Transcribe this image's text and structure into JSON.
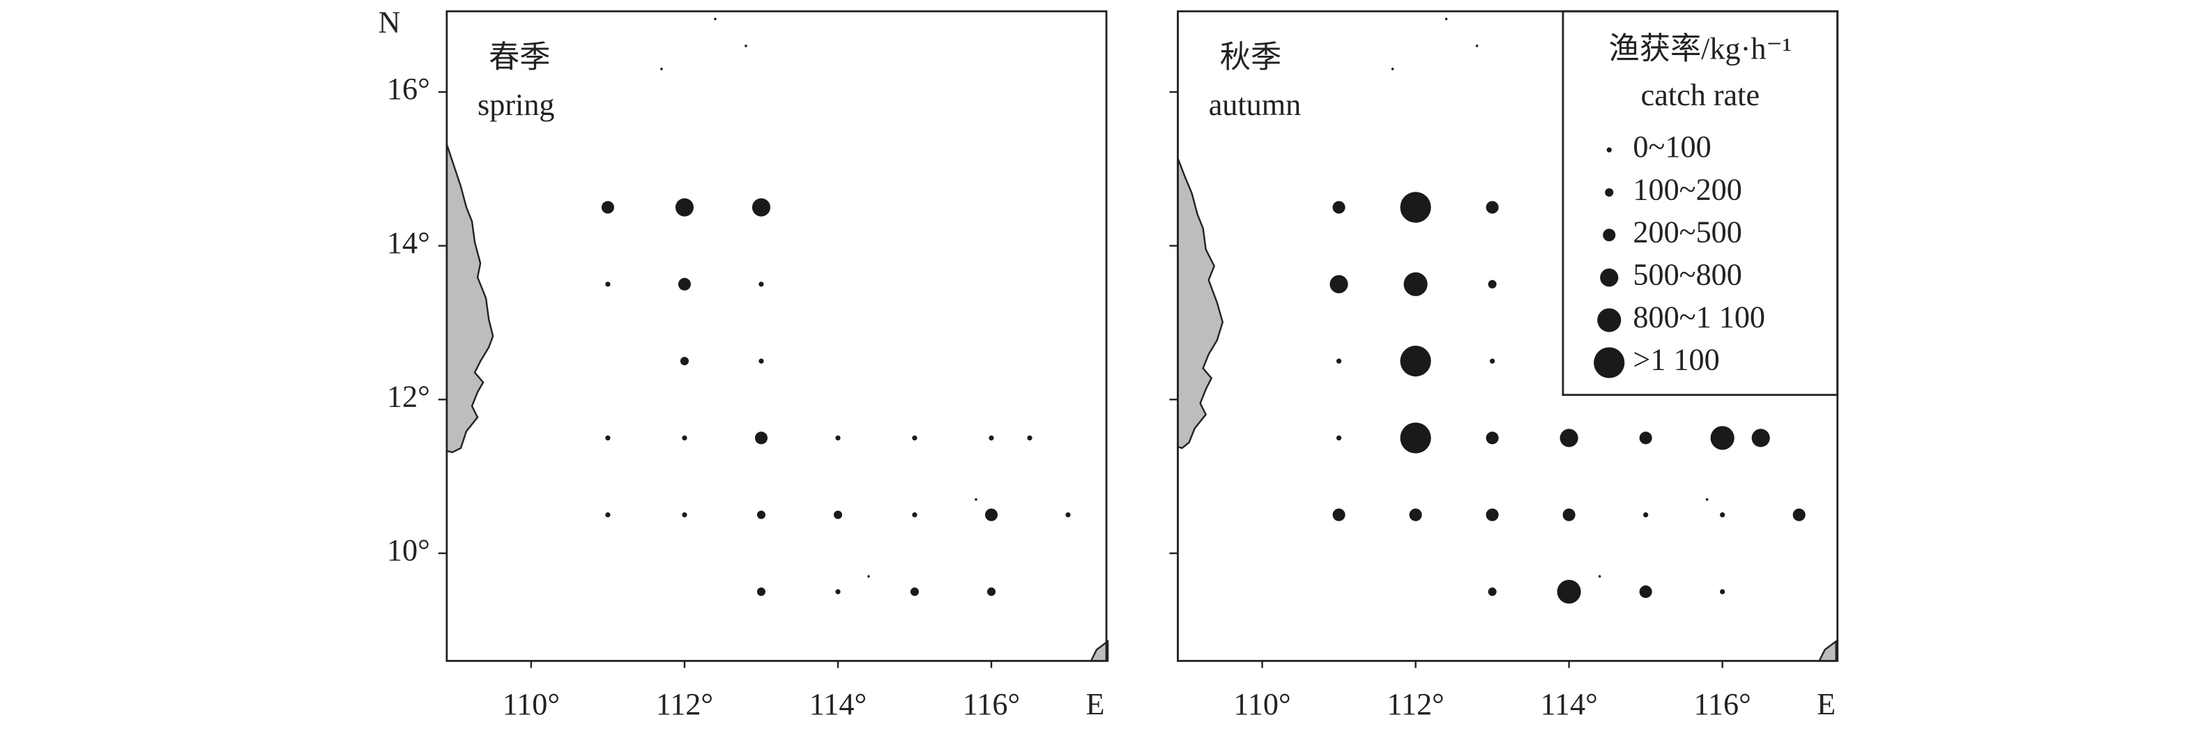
{
  "axes": {
    "xlim": [
      108.9,
      117.5
    ],
    "ylim": [
      8.6,
      17.05
    ],
    "xticks": [
      {
        "value": 110,
        "label": "110°"
      },
      {
        "value": 112,
        "label": "112°"
      },
      {
        "value": 114,
        "label": "114°"
      },
      {
        "value": 116,
        "label": "116°"
      }
    ],
    "yticks": [
      {
        "value": 10,
        "label": "10°"
      },
      {
        "value": 12,
        "label": "12°"
      },
      {
        "value": 14,
        "label": "14°"
      },
      {
        "value": 16,
        "label": "16°"
      }
    ],
    "x_label": "E",
    "y_label": "N"
  },
  "panels": [
    {
      "title_cn": "春季",
      "title_en": "spring",
      "points": [
        {
          "lon": 111,
          "lat": 14.5,
          "class": 2
        },
        {
          "lon": 112,
          "lat": 14.5,
          "class": 3
        },
        {
          "lon": 113,
          "lat": 14.5,
          "class": 3
        },
        {
          "lon": 111,
          "lat": 13.5,
          "class": 0
        },
        {
          "lon": 112,
          "lat": 13.5,
          "class": 2
        },
        {
          "lon": 113,
          "lat": 13.5,
          "class": 0
        },
        {
          "lon": 112,
          "lat": 12.5,
          "class": 1
        },
        {
          "lon": 113,
          "lat": 12.5,
          "class": 0
        },
        {
          "lon": 111,
          "lat": 11.5,
          "class": 0
        },
        {
          "lon": 112,
          "lat": 11.5,
          "class": 0
        },
        {
          "lon": 113,
          "lat": 11.5,
          "class": 2
        },
        {
          "lon": 114,
          "lat": 11.5,
          "class": 0
        },
        {
          "lon": 115,
          "lat": 11.5,
          "class": 0
        },
        {
          "lon": 116,
          "lat": 11.5,
          "class": 0
        },
        {
          "lon": 116.5,
          "lat": 11.5,
          "class": 0
        },
        {
          "lon": 111,
          "lat": 10.5,
          "class": 0
        },
        {
          "lon": 112,
          "lat": 10.5,
          "class": 0
        },
        {
          "lon": 113,
          "lat": 10.5,
          "class": 1
        },
        {
          "lon": 114,
          "lat": 10.5,
          "class": 1
        },
        {
          "lon": 115,
          "lat": 10.5,
          "class": 0
        },
        {
          "lon": 116,
          "lat": 10.5,
          "class": 2
        },
        {
          "lon": 117,
          "lat": 10.5,
          "class": 0
        },
        {
          "lon": 113,
          "lat": 9.5,
          "class": 1
        },
        {
          "lon": 114,
          "lat": 9.5,
          "class": 0
        },
        {
          "lon": 115,
          "lat": 9.5,
          "class": 1
        },
        {
          "lon": 116,
          "lat": 9.5,
          "class": 1
        }
      ]
    },
    {
      "title_cn": "秋季",
      "title_en": "autumn",
      "points": [
        {
          "lon": 111,
          "lat": 14.5,
          "class": 2
        },
        {
          "lon": 112,
          "lat": 14.5,
          "class": 5
        },
        {
          "lon": 113,
          "lat": 14.5,
          "class": 2
        },
        {
          "lon": 111,
          "lat": 13.5,
          "class": 3
        },
        {
          "lon": 112,
          "lat": 13.5,
          "class": 4
        },
        {
          "lon": 113,
          "lat": 13.5,
          "class": 1
        },
        {
          "lon": 111,
          "lat": 12.5,
          "class": 0
        },
        {
          "lon": 112,
          "lat": 12.5,
          "class": 5
        },
        {
          "lon": 113,
          "lat": 12.5,
          "class": 0
        },
        {
          "lon": 111,
          "lat": 11.5,
          "class": 0
        },
        {
          "lon": 112,
          "lat": 11.5,
          "class": 5
        },
        {
          "lon": 113,
          "lat": 11.5,
          "class": 2
        },
        {
          "lon": 114,
          "lat": 11.5,
          "class": 3
        },
        {
          "lon": 115,
          "lat": 11.5,
          "class": 2
        },
        {
          "lon": 116,
          "lat": 11.5,
          "class": 4
        },
        {
          "lon": 116.5,
          "lat": 11.5,
          "class": 3
        },
        {
          "lon": 111,
          "lat": 10.5,
          "class": 2
        },
        {
          "lon": 112,
          "lat": 10.5,
          "class": 2
        },
        {
          "lon": 113,
          "lat": 10.5,
          "class": 2
        },
        {
          "lon": 114,
          "lat": 10.5,
          "class": 2
        },
        {
          "lon": 115,
          "lat": 10.5,
          "class": 0
        },
        {
          "lon": 116,
          "lat": 10.5,
          "class": 0
        },
        {
          "lon": 117,
          "lat": 10.5,
          "class": 2
        },
        {
          "lon": 113,
          "lat": 9.5,
          "class": 1
        },
        {
          "lon": 114,
          "lat": 9.5,
          "class": 4
        },
        {
          "lon": 115,
          "lat": 9.5,
          "class": 2
        },
        {
          "lon": 116,
          "lat": 9.5,
          "class": 0
        }
      ]
    }
  ],
  "legend": {
    "title": "渔获率/kg·h⁻¹",
    "subtitle": "catch rate",
    "classes": [
      "0~100",
      "100~200",
      "200~500",
      "500~800",
      "800~1 100",
      ">1 100"
    ]
  }
}
